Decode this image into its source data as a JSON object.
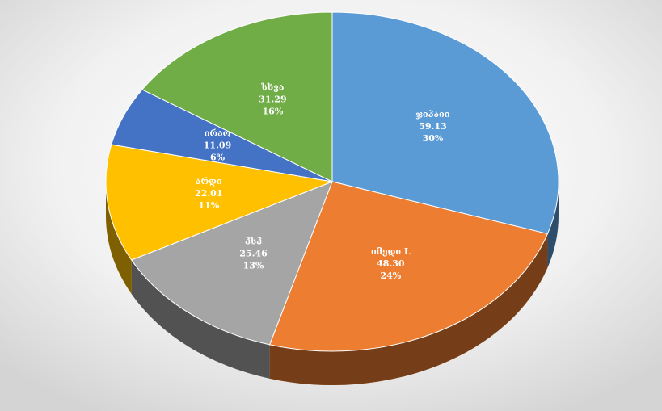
{
  "chart_data": {
    "type": "pie3d",
    "categories": [
      "ჯიპაიი",
      "იმედი L",
      "ჰსჰ",
      "არდი",
      "ირაო",
      "სხვა"
    ],
    "values": [
      59.13,
      48.3,
      25.46,
      22.01,
      11.09,
      31.29
    ],
    "value_labels": [
      "59.13",
      "48.30",
      "25.46",
      "22.01",
      "11.09",
      "31.29"
    ],
    "percent_labels": [
      "30%",
      "24%",
      "13%",
      "11%",
      "6%",
      "16%"
    ],
    "colors": [
      "#5b9bd5",
      "#ed7d31",
      "#a5a5a5",
      "#ffc000",
      "#4472c4",
      "#70ad47"
    ]
  }
}
